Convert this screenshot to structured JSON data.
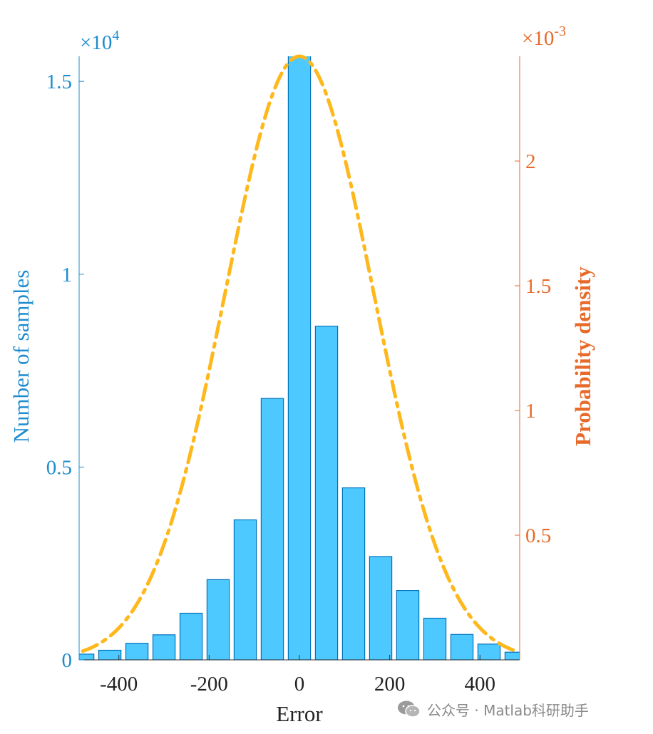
{
  "chart_data": {
    "type": "bar",
    "x": [
      -480,
      -420,
      -360,
      -300,
      -240,
      -180,
      -120,
      -60,
      0,
      60,
      120,
      180,
      240,
      300,
      360,
      420,
      480
    ],
    "values": [
      150,
      250,
      430,
      650,
      1210,
      2080,
      3630,
      6780,
      15800,
      8650,
      4460,
      2680,
      1800,
      1080,
      660,
      410,
      200
    ],
    "overlay": {
      "type": "line",
      "name": "Probability density",
      "style": "dash-dot",
      "mean": 0,
      "std": 165,
      "x_range": [
        -480,
        480
      ],
      "peak_density": 0.00242
    },
    "title": "",
    "xlabel": "Error",
    "ylabel": "Number of samples",
    "y2label": "Probability density",
    "xlim": [
      -488,
      488
    ],
    "ylim": [
      0,
      15650
    ],
    "y2lim": [
      0,
      0.00242
    ],
    "xticks": [
      -400,
      -200,
      0,
      200,
      400
    ],
    "xtick_labels": [
      "-400",
      "-200",
      "0",
      "200",
      "400"
    ],
    "yticks": [
      0,
      5000,
      10000,
      15000
    ],
    "ytick_labels": [
      "0",
      "0.5",
      "1",
      "1.5"
    ],
    "y2ticks": [
      0.0005,
      0.001,
      0.0015,
      0.002
    ],
    "y2tick_labels": [
      "0.5",
      "1",
      "1.5",
      "2"
    ],
    "y_multiplier_base": "×10",
    "y_multiplier_exp": "4",
    "y2_multiplier_base": "×10",
    "y2_multiplier_exp": "-3",
    "colors": {
      "bar_fill": "#4DC9FF",
      "bar_edge": "#0072BD",
      "left_axis": "#1E8CCF",
      "right_axis": "#E86A2A",
      "curve": "#FFB81C",
      "text": "#222222"
    }
  },
  "watermark": {
    "text": "公众号 · Matlab科研助手",
    "icon": "wechat-icon"
  }
}
